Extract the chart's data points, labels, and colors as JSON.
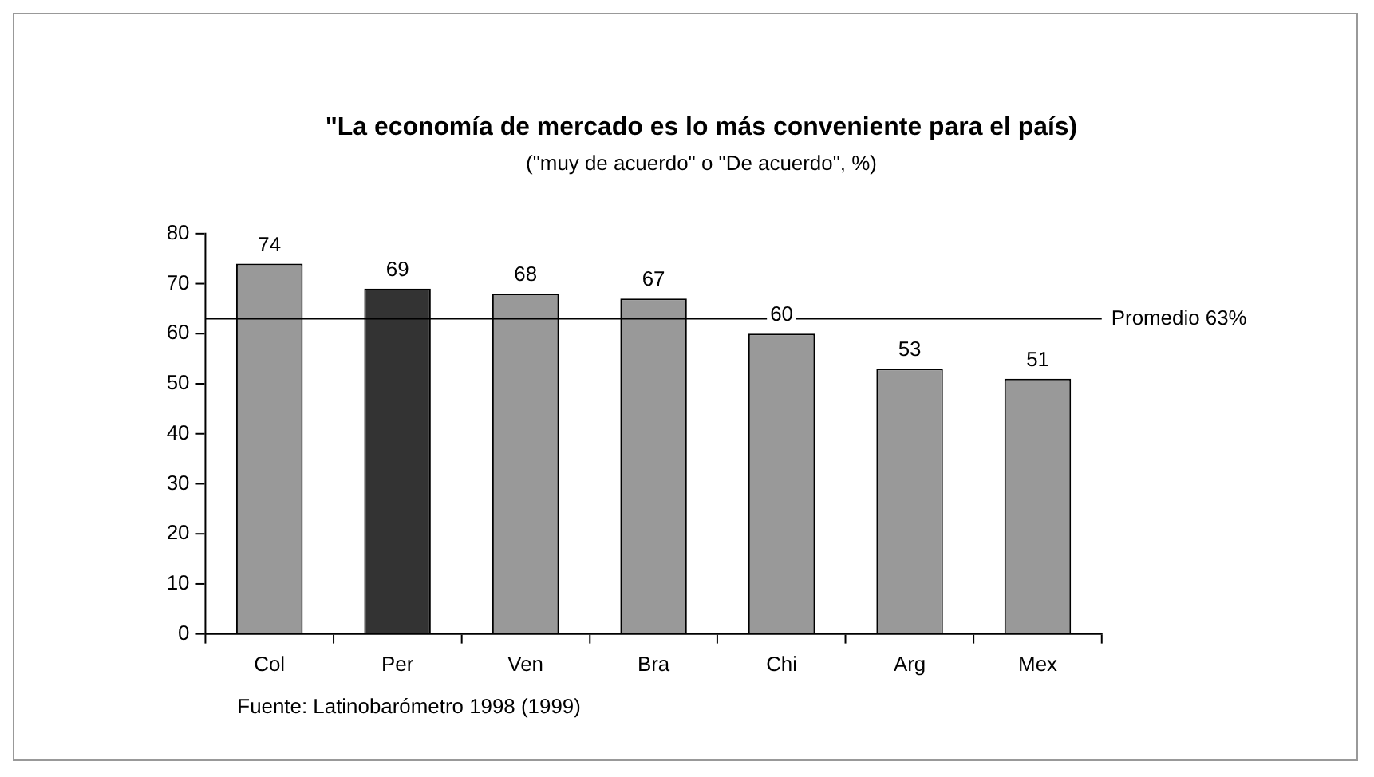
{
  "chart_data": {
    "type": "bar",
    "title": "\"La economía de mercado es lo más conveniente para el país)",
    "subtitle": "(\"muy de acuerdo\" o \"De acuerdo\", %)",
    "categories": [
      "Col",
      "Per",
      "Ven",
      "Bra",
      "Chi",
      "Arg",
      "Mex"
    ],
    "values": [
      74,
      69,
      68,
      67,
      60,
      53,
      51
    ],
    "colors": [
      "#999999",
      "#333333",
      "#999999",
      "#999999",
      "#999999",
      "#999999",
      "#999999"
    ],
    "ylim": [
      0,
      80
    ],
    "yticks": [
      0,
      10,
      20,
      30,
      40,
      50,
      60,
      70,
      80
    ],
    "grid": false,
    "legend": false,
    "data_labels": true,
    "ref_lines": [
      {
        "axis": "y",
        "value": 63,
        "label": "Promedio 63%",
        "color": "#000000"
      }
    ],
    "annotations": [
      "Fuente: Latinobarómetro 1998 (1999)"
    ]
  }
}
